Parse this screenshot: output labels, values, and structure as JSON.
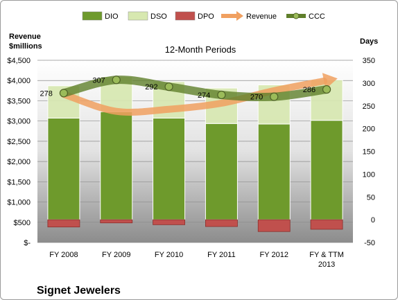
{
  "company": "Signet Jewelers",
  "chart_data": {
    "type": "bar",
    "subtitle": "12-Month Periods",
    "ylabel_left": [
      "Revenue",
      "$millions"
    ],
    "ylabel_right": "Days",
    "categories": [
      "FY 2008",
      "FY 2009",
      "FY 2010",
      "FY 2011",
      "FY 2012",
      "FY & TTM 2013"
    ],
    "left_axis": {
      "ylim": [
        0,
        4500
      ],
      "ticks": [
        "$-",
        "$500",
        "$1,000",
        "$1,500",
        "$2,000",
        "$2,500",
        "$3,000",
        "$3,500",
        "$4,000",
        "$4,500"
      ]
    },
    "right_axis": {
      "ylim": [
        -50,
        350
      ],
      "ticks": [
        "-50",
        "0",
        "50",
        "100",
        "150",
        "200",
        "250",
        "300",
        "350"
      ]
    },
    "series": [
      {
        "name": "DIO",
        "axis": "right",
        "color": "#6e9a2c",
        "values": [
          223,
          237,
          223,
          211,
          210,
          218
        ]
      },
      {
        "name": "DSO",
        "axis": "right",
        "color": "#d7e8b0",
        "values": [
          71,
          77,
          80,
          78,
          86,
          89
        ]
      },
      {
        "name": "DPO",
        "axis": "right",
        "color": "#c0504d",
        "values": [
          -16,
          -7,
          -11,
          -15,
          -26,
          -21
        ]
      },
      {
        "name": "Revenue",
        "axis": "left",
        "color": "#f0a060",
        "values": [
          3660,
          3240,
          3290,
          3440,
          3750,
          4000
        ]
      },
      {
        "name": "CCC",
        "axis": "right",
        "color": "#5f7f2a",
        "values": [
          278,
          307,
          292,
          274,
          270,
          286
        ]
      }
    ],
    "grid": true,
    "legend": "top"
  }
}
